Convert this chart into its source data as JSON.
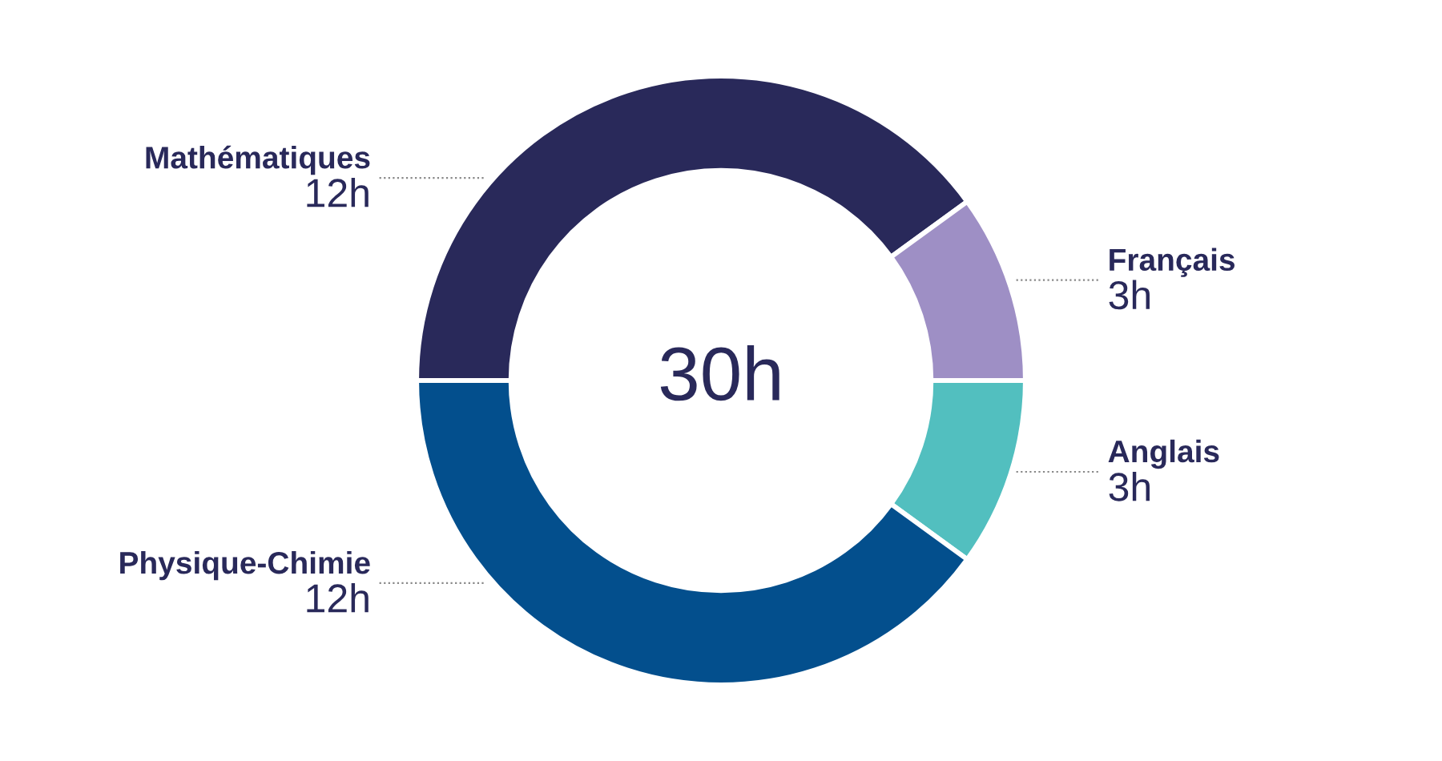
{
  "chart_data": {
    "type": "donut",
    "categories": [
      "Mathématiques",
      "Français",
      "Anglais",
      "Physique-Chimie"
    ],
    "values": [
      12,
      3,
      3,
      12
    ],
    "value_labels": [
      "12h",
      "3h",
      "3h",
      "12h"
    ],
    "colors": [
      "#29295a",
      "#9e8fc5",
      "#52bfbf",
      "#034f8d"
    ],
    "annotations": [
      "30h"
    ],
    "legend": false
  }
}
